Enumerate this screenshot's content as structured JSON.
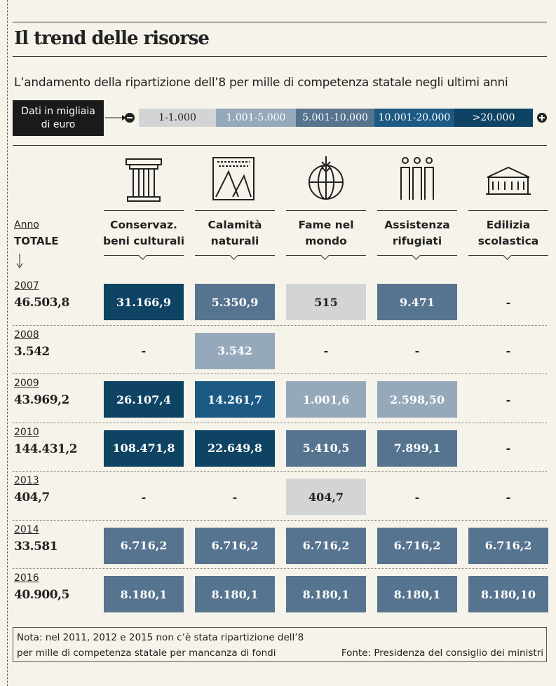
{
  "title": "Il trend delle risorse",
  "subtitle": "L’andamento della ripartizione dell’8 per mille di competenza statale negli ultimi anni",
  "legend": {
    "label": "Dati in migliaia di euro",
    "items": [
      {
        "label": "1-1.000",
        "color": "#d3d4d5"
      },
      {
        "label": "1.001-5.000",
        "color": "#96a9bb"
      },
      {
        "label": "5.001-10.000",
        "color": "#56738f"
      },
      {
        "label": "10.001-20.000",
        "color": "#1c5a84"
      },
      {
        "label": ">20.000",
        "color": "#0e4363"
      }
    ]
  },
  "table": {
    "row_header": {
      "year": "Anno",
      "total": "TOTALE"
    },
    "columns": [
      "Conservaz. beni culturali",
      "Calamità naturali",
      "Fame nel mondo",
      "Assistenza rifugiati",
      "Edilizia scolastica"
    ],
    "rows": [
      {
        "year": "2007",
        "total": "46.503,8",
        "cells": [
          "31.166,9",
          "5.350,9",
          "515",
          "9.471",
          "-"
        ]
      },
      {
        "year": "2008",
        "total": "3.542",
        "cells": [
          "-",
          "3.542",
          "-",
          "-",
          "-"
        ]
      },
      {
        "year": "2009",
        "total": "43.969,2",
        "cells": [
          "26.107,4",
          "14.261,7",
          "1.001,6",
          "2.598,50",
          "-"
        ]
      },
      {
        "year": "2010",
        "total": "144.431,2",
        "cells": [
          "108.471,8",
          "22.649,8",
          "5.410,5",
          "7.899,1",
          "-"
        ]
      },
      {
        "year": "2013",
        "total": "404,7",
        "cells": [
          "-",
          "-",
          "404,7",
          "-",
          "-"
        ]
      },
      {
        "year": "2014",
        "total": "33.581",
        "cells": [
          "6.716,2",
          "6.716,2",
          "6.716,2",
          "6.716,2",
          "6.716,2"
        ]
      },
      {
        "year": "2016",
        "total": "40.900,5",
        "cells": [
          "8.180,1",
          "8.180,1",
          "8.180,1",
          "8.180,1",
          "8.180,10"
        ]
      }
    ]
  },
  "footer": {
    "note": "Nota: nel 2011, 2012 e 2015 non c’è stata ripartizione dell’8 per mille di competenza statale per mancanza di fondi",
    "source": "Fonte: Presidenza del consiglio dei ministri"
  }
}
